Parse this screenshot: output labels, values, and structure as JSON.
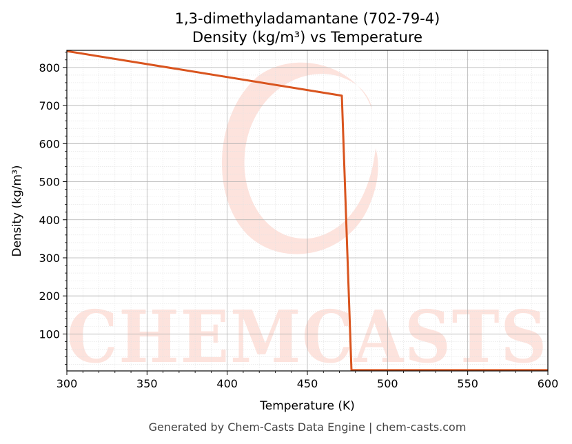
{
  "chart_data": {
    "type": "line",
    "title": "1,3-dimethyladamantane (702-79-4)",
    "subtitle": "Density (kg/m³) vs Temperature",
    "xlabel": "Temperature (K)",
    "ylabel": "Density (kg/m³)",
    "xlim": [
      300,
      600
    ],
    "ylim": [
      3,
      845
    ],
    "x_ticks": [
      300,
      350,
      400,
      450,
      500,
      550,
      600
    ],
    "y_ticks": [
      100,
      200,
      300,
      400,
      500,
      600,
      700,
      800
    ],
    "grid": true,
    "legend": "none",
    "series": [
      {
        "color": "#d9541e",
        "x": [
          300,
          471.5,
          477.5,
          600
        ],
        "y": [
          843,
          726,
          5,
          5
        ]
      }
    ]
  },
  "watermark": {
    "text": "CHEMCASTS",
    "color": "#fde3dd"
  },
  "footer": "Generated by Chem-Casts Data Engine | chem-casts.com"
}
